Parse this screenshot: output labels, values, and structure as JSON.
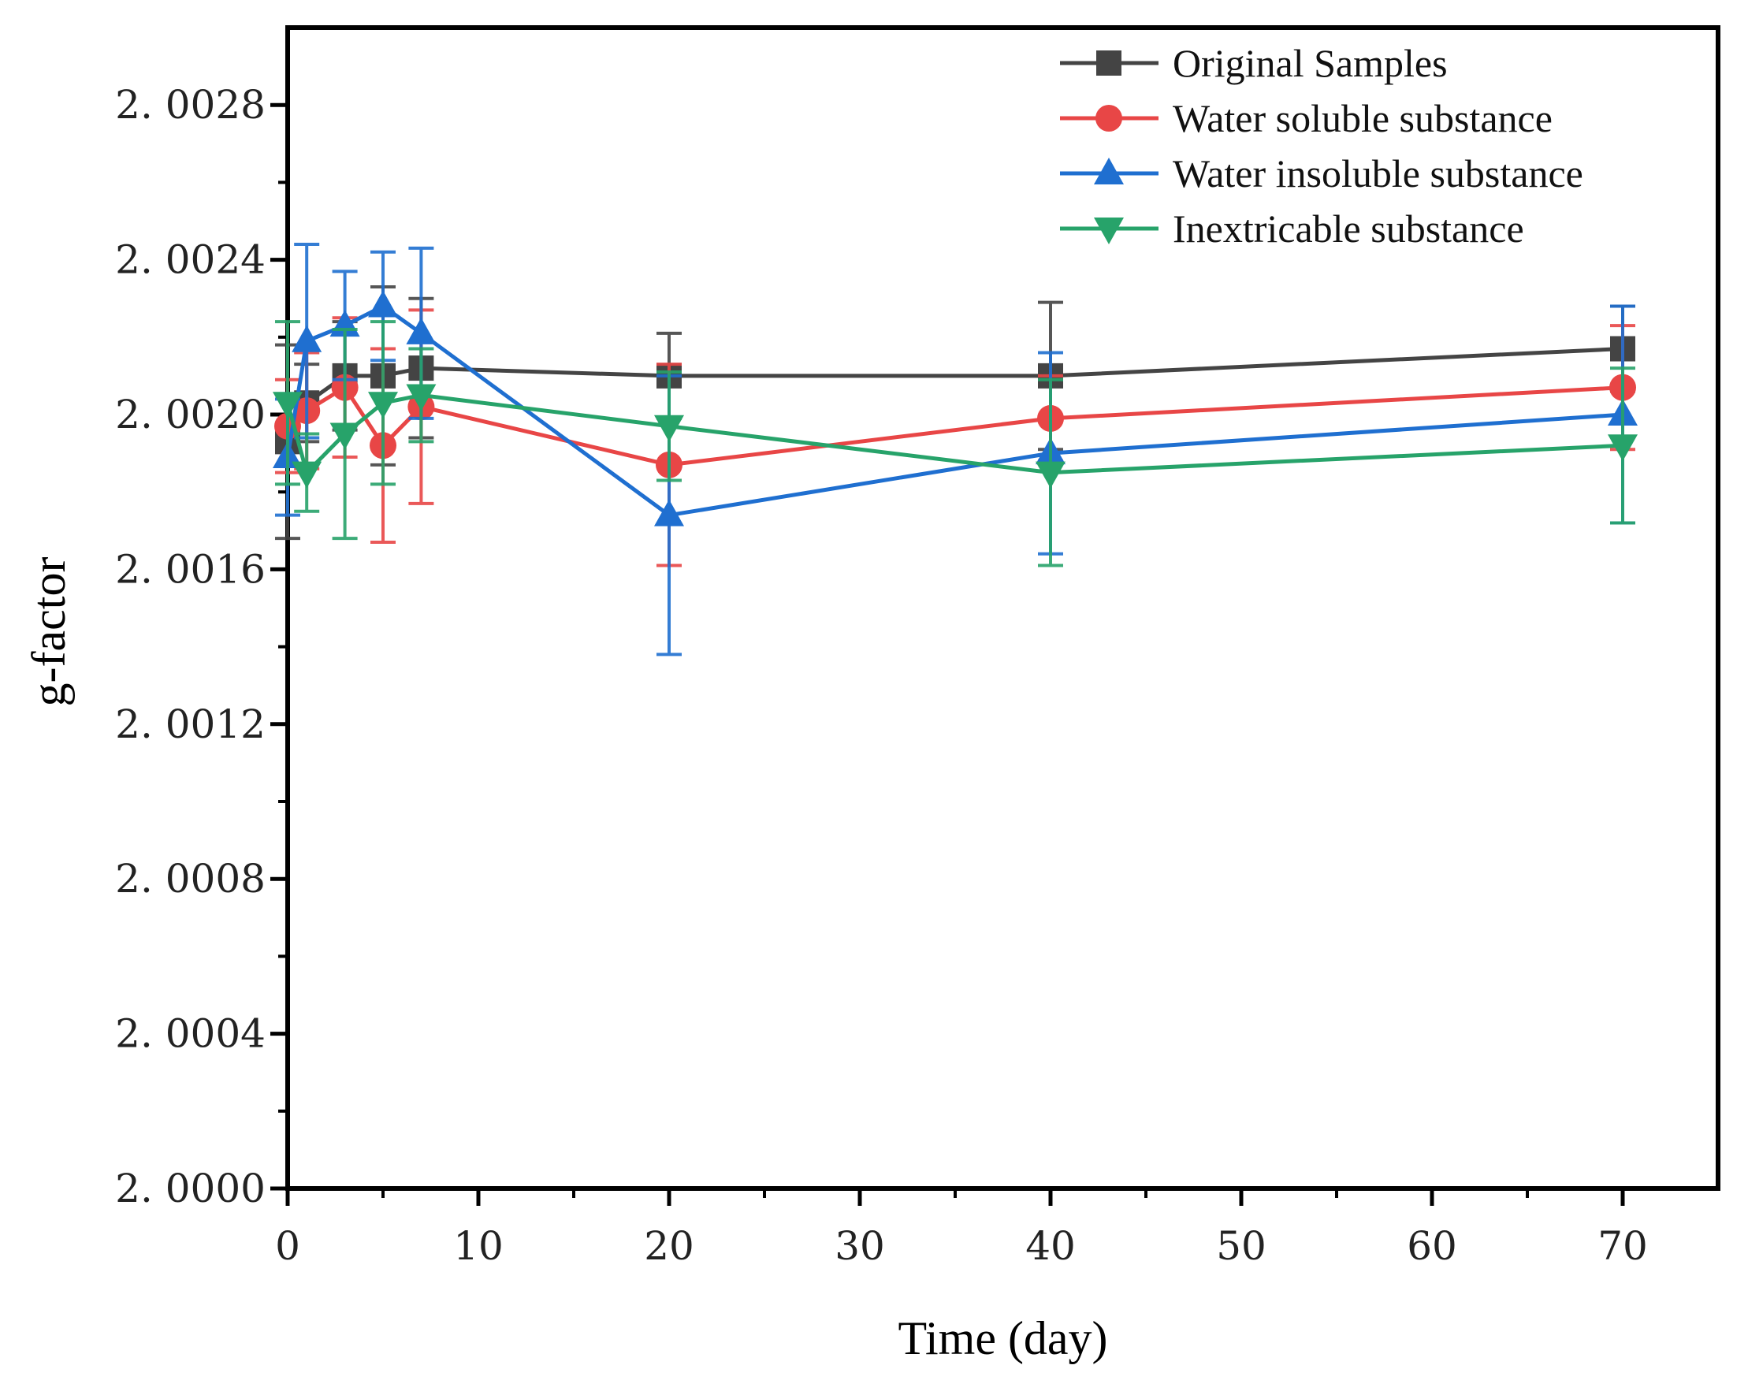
{
  "chart_data": {
    "type": "line",
    "xlabel": "Time (day)",
    "ylabel": "g-factor",
    "xlim": [
      0,
      75
    ],
    "ylim": [
      2.0,
      2.003
    ],
    "x_ticks": [
      0,
      10,
      20,
      30,
      40,
      50,
      60,
      70
    ],
    "x_tick_labels": [
      "0",
      "10",
      "20",
      "30",
      "40",
      "50",
      "60",
      "70"
    ],
    "y_ticks": [
      2.0,
      2.0004,
      2.0008,
      2.0012,
      2.0016,
      2.002,
      2.0024,
      2.0028
    ],
    "y_tick_labels": [
      "2. 0000",
      "2. 0004",
      "2. 0008",
      "2. 0012",
      "2. 0016",
      "2. 0020",
      "2. 0024",
      "2. 0028"
    ],
    "grid": false,
    "legend_position": "top-right",
    "series": [
      {
        "name": "Original Samples",
        "color": "#444444",
        "marker": "square",
        "points": [
          {
            "x": 0,
            "y": 2.00193,
            "err": 0.00025
          },
          {
            "x": 1,
            "y": 2.00203,
            "err": 0.0001
          },
          {
            "x": 3,
            "y": 2.0021,
            "err": 0.00014
          },
          {
            "x": 5,
            "y": 2.0021,
            "err": 0.00023
          },
          {
            "x": 7,
            "y": 2.00212,
            "err": 0.00018
          },
          {
            "x": 20,
            "y": 2.0021,
            "err": 0.00011
          },
          {
            "x": 40,
            "y": 2.0021,
            "err": 0.00019
          },
          {
            "x": 70,
            "y": 2.00217,
            "err": 0.00011
          }
        ]
      },
      {
        "name": "Water soluble substance",
        "color": "#e84646",
        "marker": "circle",
        "points": [
          {
            "x": 0,
            "y": 2.00197,
            "err": 0.00012
          },
          {
            "x": 1,
            "y": 2.00201,
            "err": 0.00015
          },
          {
            "x": 3,
            "y": 2.00207,
            "err": 0.00018
          },
          {
            "x": 5,
            "y": 2.00192,
            "err": 0.00025
          },
          {
            "x": 7,
            "y": 2.00202,
            "err": 0.00025
          },
          {
            "x": 20,
            "y": 2.00187,
            "err": 0.00026
          },
          {
            "x": 40,
            "y": 2.00199,
            "err": 0.00011
          },
          {
            "x": 70,
            "y": 2.00207,
            "err": 0.00016
          }
        ]
      },
      {
        "name": "Water insoluble substance",
        "color": "#1f6fd0",
        "marker": "triangle-up",
        "points": [
          {
            "x": 0,
            "y": 2.00189,
            "err": 0.00015
          },
          {
            "x": 1,
            "y": 2.00219,
            "err": 0.00025
          },
          {
            "x": 3,
            "y": 2.00223,
            "err": 0.00014
          },
          {
            "x": 5,
            "y": 2.00228,
            "err": 0.00014
          },
          {
            "x": 7,
            "y": 2.00221,
            "err": 0.00022
          },
          {
            "x": 20,
            "y": 2.00174,
            "err": 0.00036
          },
          {
            "x": 40,
            "y": 2.0019,
            "err": 0.00026
          },
          {
            "x": 70,
            "y": 2.002,
            "err": 0.00028
          }
        ]
      },
      {
        "name": "Inextricable substance",
        "color": "#27a36a",
        "marker": "triangle-down",
        "points": [
          {
            "x": 0,
            "y": 2.00203,
            "err": 0.00021
          },
          {
            "x": 1,
            "y": 2.00185,
            "err": 0.0001
          },
          {
            "x": 3,
            "y": 2.00195,
            "err": 0.00027
          },
          {
            "x": 5,
            "y": 2.00203,
            "err": 0.00021
          },
          {
            "x": 7,
            "y": 2.00205,
            "err": 0.00012
          },
          {
            "x": 20,
            "y": 2.00197,
            "err": 0.00014
          },
          {
            "x": 40,
            "y": 2.00185,
            "err": 0.00024
          },
          {
            "x": 70,
            "y": 2.00192,
            "err": 0.0002
          }
        ]
      }
    ]
  }
}
